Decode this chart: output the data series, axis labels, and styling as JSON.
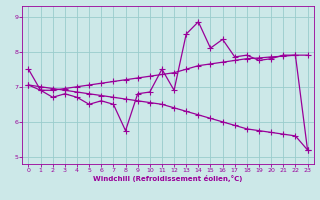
{
  "xlabel": "Windchill (Refroidissement éolien,°C)",
  "x_hours": [
    0,
    1,
    2,
    3,
    4,
    5,
    6,
    7,
    8,
    9,
    10,
    11,
    12,
    13,
    14,
    15,
    16,
    17,
    18,
    19,
    20,
    21,
    22,
    23
  ],
  "line1_y": [
    7.5,
    6.9,
    6.7,
    6.8,
    6.7,
    6.5,
    6.6,
    6.5,
    5.75,
    6.8,
    6.85,
    7.5,
    6.9,
    8.5,
    8.85,
    8.1,
    8.35,
    7.85,
    7.9,
    7.75,
    7.8,
    7.9,
    7.9,
    5.2
  ],
  "line2_y": [
    7.05,
    6.9,
    6.9,
    6.95,
    7.0,
    7.05,
    7.1,
    7.15,
    7.2,
    7.25,
    7.3,
    7.35,
    7.4,
    7.5,
    7.6,
    7.65,
    7.7,
    7.75,
    7.8,
    7.82,
    7.85,
    7.87,
    7.9,
    7.9
  ],
  "line3_y": [
    7.05,
    7.0,
    6.95,
    6.9,
    6.85,
    6.8,
    6.75,
    6.7,
    6.65,
    6.6,
    6.55,
    6.5,
    6.4,
    6.3,
    6.2,
    6.1,
    6.0,
    5.9,
    5.8,
    5.75,
    5.7,
    5.65,
    5.6,
    5.2
  ],
  "line_color": "#990099",
  "bg_color": "#cce8e8",
  "grid_color": "#99cccc",
  "ylim": [
    4.8,
    9.3
  ],
  "xlim": [
    -0.5,
    23.5
  ],
  "yticks": [
    5,
    6,
    7,
    8,
    9
  ],
  "xticks": [
    0,
    1,
    2,
    3,
    4,
    5,
    6,
    7,
    8,
    9,
    10,
    11,
    12,
    13,
    14,
    15,
    16,
    17,
    18,
    19,
    20,
    21,
    22,
    23
  ],
  "marker": "+",
  "markersize": 4,
  "linewidth": 0.9
}
